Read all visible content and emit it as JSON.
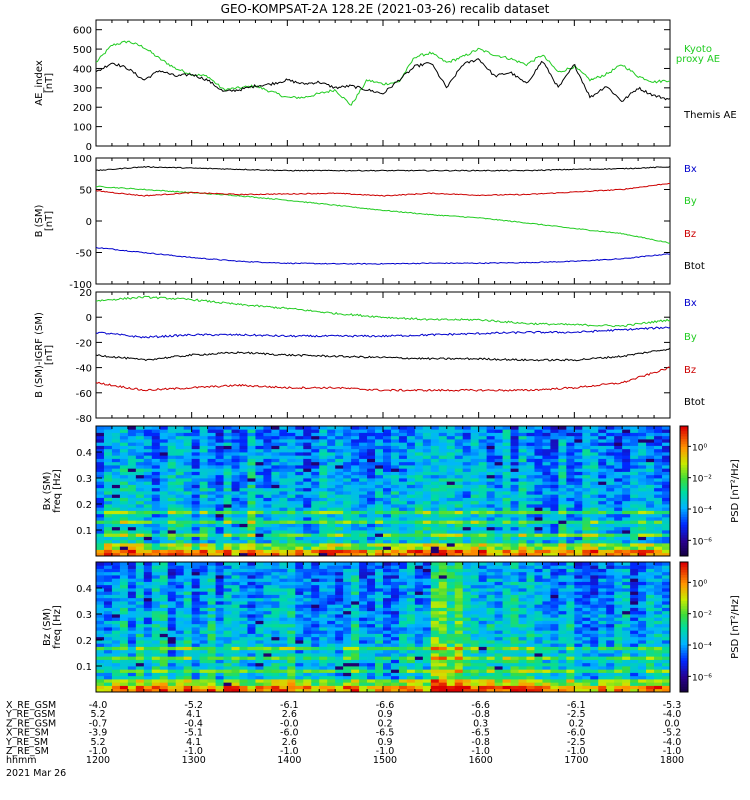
{
  "title": "GEO-KOMPSAT-2A 128.2E (2021-03-26) recalib dataset",
  "colors": {
    "black": "#000000",
    "green": "#22cc22",
    "blue": "#0000cc",
    "red": "#cc0000"
  },
  "chart_data": [
    {
      "type": "line",
      "ylabel": "AE_index [nT]",
      "ylim": [
        0,
        650
      ],
      "yticks": [
        0,
        100,
        200,
        300,
        400,
        500,
        600
      ],
      "xlim": [
        0,
        360
      ],
      "series": [
        {
          "name": "Kyoto proxy AE",
          "label_lines": [
            "Kyoto",
            "proxy AE"
          ],
          "color": "green",
          "x": [
            0,
            10,
            20,
            30,
            40,
            50,
            60,
            70,
            80,
            90,
            100,
            110,
            120,
            130,
            140,
            150,
            160,
            170,
            180,
            190,
            200,
            210,
            220,
            230,
            240,
            250,
            260,
            270,
            280,
            290,
            300,
            310,
            320,
            330,
            340,
            350,
            360
          ],
          "y": [
            430,
            520,
            540,
            510,
            450,
            400,
            370,
            360,
            290,
            300,
            310,
            280,
            250,
            250,
            270,
            290,
            210,
            340,
            320,
            330,
            460,
            480,
            430,
            460,
            500,
            470,
            450,
            420,
            470,
            380,
            410,
            340,
            370,
            420,
            360,
            330,
            340
          ]
        },
        {
          "name": "Themis AE",
          "label_lines": [
            "Themis AE"
          ],
          "color": "black",
          "x": [
            0,
            10,
            20,
            30,
            40,
            50,
            60,
            70,
            80,
            90,
            100,
            110,
            120,
            130,
            140,
            150,
            160,
            170,
            180,
            190,
            200,
            210,
            220,
            230,
            240,
            250,
            260,
            270,
            280,
            290,
            300,
            310,
            320,
            330,
            340,
            350,
            360
          ],
          "y": [
            380,
            430,
            400,
            340,
            390,
            360,
            370,
            340,
            280,
            290,
            310,
            320,
            340,
            320,
            330,
            300,
            310,
            290,
            270,
            340,
            410,
            430,
            300,
            420,
            450,
            360,
            380,
            320,
            440,
            300,
            420,
            250,
            310,
            230,
            300,
            260,
            240
          ]
        }
      ]
    },
    {
      "type": "line",
      "ylabel": "B (SM) [nT]",
      "ylim": [
        -100,
        100
      ],
      "yticks": [
        -100,
        -50,
        0,
        50,
        100
      ],
      "xlim": [
        0,
        360
      ],
      "series": [
        {
          "name": "Bx",
          "color": "blue",
          "x": [
            0,
            30,
            60,
            90,
            120,
            150,
            180,
            210,
            240,
            270,
            300,
            330,
            360
          ],
          "y": [
            -42,
            -50,
            -58,
            -64,
            -67,
            -68,
            -68,
            -67,
            -67,
            -66,
            -64,
            -60,
            -52
          ]
        },
        {
          "name": "By",
          "color": "green",
          "x": [
            0,
            30,
            60,
            90,
            120,
            150,
            180,
            210,
            240,
            270,
            300,
            330,
            360
          ],
          "y": [
            55,
            50,
            45,
            40,
            33,
            25,
            17,
            10,
            5,
            -3,
            -12,
            -20,
            -35
          ]
        },
        {
          "name": "Bz",
          "color": "red",
          "x": [
            0,
            30,
            60,
            90,
            120,
            150,
            180,
            210,
            240,
            270,
            300,
            330,
            360
          ],
          "y": [
            48,
            40,
            45,
            42,
            43,
            44,
            40,
            44,
            41,
            42,
            46,
            50,
            60
          ]
        },
        {
          "name": "Btot",
          "color": "black",
          "x": [
            0,
            30,
            60,
            90,
            120,
            150,
            180,
            210,
            240,
            270,
            300,
            330,
            360
          ],
          "y": [
            80,
            86,
            84,
            82,
            80,
            80,
            80,
            80,
            80,
            80,
            82,
            83,
            86
          ]
        }
      ]
    },
    {
      "type": "line",
      "ylabel": "B (SM)-IGRF (SM) [nT]",
      "ylim": [
        -80,
        20
      ],
      "yticks": [
        -80,
        -60,
        -40,
        -20,
        0,
        20
      ],
      "xlim": [
        0,
        360
      ],
      "series": [
        {
          "name": "Bx",
          "color": "blue",
          "x": [
            0,
            30,
            60,
            90,
            120,
            150,
            180,
            210,
            240,
            270,
            300,
            330,
            360
          ],
          "y": [
            -12,
            -16,
            -14,
            -14,
            -15,
            -15,
            -15,
            -14,
            -13,
            -12,
            -12,
            -10,
            -8
          ]
        },
        {
          "name": "By",
          "color": "green",
          "x": [
            0,
            30,
            60,
            90,
            120,
            150,
            180,
            210,
            240,
            270,
            300,
            330,
            360
          ],
          "y": [
            13,
            16,
            14,
            10,
            7,
            3,
            0,
            -2,
            -2,
            -5,
            -6,
            -7,
            -2
          ]
        },
        {
          "name": "Bz",
          "color": "red",
          "x": [
            0,
            30,
            60,
            90,
            120,
            150,
            180,
            210,
            240,
            270,
            300,
            330,
            360
          ],
          "y": [
            -52,
            -58,
            -56,
            -54,
            -56,
            -56,
            -58,
            -58,
            -58,
            -58,
            -56,
            -52,
            -40
          ]
        },
        {
          "name": "Btot",
          "color": "black",
          "x": [
            0,
            30,
            60,
            90,
            120,
            150,
            180,
            210,
            240,
            270,
            300,
            330,
            360
          ],
          "y": [
            -30,
            -34,
            -30,
            -28,
            -30,
            -31,
            -32,
            -33,
            -33,
            -34,
            -34,
            -31,
            -25
          ]
        }
      ]
    },
    {
      "type": "heatmap",
      "ylabel": "Bx (SM) freq [Hz]",
      "ylim": [
        0,
        0.5
      ],
      "yticks": [
        0.1,
        0.2,
        0.3,
        0.4
      ],
      "colorbar_label": "PSD [nT²/Hz]",
      "colorbar_ticks": [
        "10⁰",
        "10⁻²",
        "10⁻⁴",
        "10⁻⁶"
      ],
      "colorbar_tick_values": [
        0,
        -2,
        -4,
        -6
      ],
      "colorbar_range": [
        -7,
        1.3
      ],
      "lines_hz": [
        0.17,
        0.135,
        0.085
      ]
    },
    {
      "type": "heatmap",
      "ylabel": "Bz (SM) freq [Hz]",
      "ylim": [
        0,
        0.5
      ],
      "yticks": [
        0.1,
        0.2,
        0.3,
        0.4
      ],
      "colorbar_label": "PSD [nT²/Hz]",
      "colorbar_ticks": [
        "10⁰",
        "10⁻²",
        "10⁻⁴",
        "10⁻⁶"
      ],
      "colorbar_tick_values": [
        0,
        -2,
        -4,
        -6
      ],
      "colorbar_range": [
        -7,
        1.3
      ],
      "lines_hz": [
        0.17,
        0.135,
        0.085
      ]
    }
  ],
  "ephemeris": {
    "row_labels": [
      "X_RE_GSM",
      "Y_RE_GSM",
      "Z_RE_GSM",
      "X_RE_SM",
      "Y_RE_SM",
      "Z_RE_SM",
      "hhmm"
    ],
    "columns": [
      [
        "-4.0",
        "5.2",
        "-0.7",
        "-3.9",
        "5.2",
        "-1.0",
        "1200"
      ],
      [
        "-5.2",
        "4.1",
        "-0.4",
        "-5.1",
        "4.1",
        "-1.0",
        "1300"
      ],
      [
        "-6.1",
        "2.6",
        "-0.0",
        "-6.0",
        "2.6",
        "-1.0",
        "1400"
      ],
      [
        "-6.6",
        "0.9",
        "0.2",
        "-6.5",
        "0.9",
        "-1.0",
        "1500"
      ],
      [
        "-6.6",
        "-0.8",
        "0.3",
        "-6.5",
        "-0.8",
        "-1.0",
        "1600"
      ],
      [
        "-6.1",
        "-2.5",
        "0.2",
        "-6.0",
        "-2.5",
        "-1.0",
        "1700"
      ],
      [
        "-5.3",
        "-4.0",
        "0.0",
        "-5.2",
        "-4.0",
        "-1.0",
        "1800"
      ]
    ],
    "date": "2021 Mar 26"
  }
}
